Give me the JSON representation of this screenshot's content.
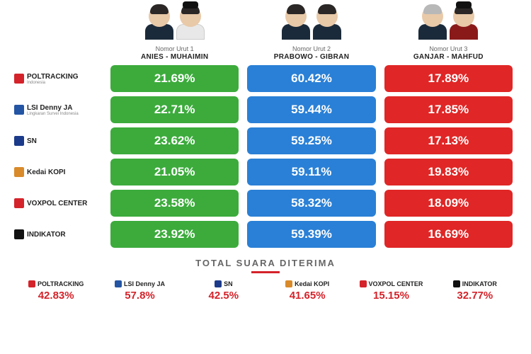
{
  "colors": {
    "col1": "#3cab3c",
    "col2": "#2a80d6",
    "col3": "#e02626",
    "total_pct": "#d4232a"
  },
  "candidates": [
    {
      "nomor": "Nomor Urut 1",
      "names": "ANIES - MUHAIMIN",
      "heads": [
        {
          "hair": "dark",
          "shoulders": "navy",
          "peci": false
        },
        {
          "hair": "dark",
          "shoulders": "white",
          "peci": true
        }
      ]
    },
    {
      "nomor": "Nomor Urut 2",
      "names": "PRABOWO - GIBRAN",
      "heads": [
        {
          "hair": "dark",
          "shoulders": "navy",
          "peci": false
        },
        {
          "hair": "dark",
          "shoulders": "navy",
          "peci": false
        }
      ]
    },
    {
      "nomor": "Nomor Urut 3",
      "names": "GANJAR - MAHFUD",
      "heads": [
        {
          "hair": "grey",
          "shoulders": "navy",
          "peci": false
        },
        {
          "hair": "dark",
          "shoulders": "red",
          "peci": true
        }
      ]
    }
  ],
  "orgs": [
    {
      "name": "POLTRACKING",
      "sub": "Indonesia",
      "logo_color": "#d4232a",
      "vals": [
        "21.69%",
        "60.42%",
        "17.89%"
      ],
      "total": "42.83%"
    },
    {
      "name": "LSI Denny JA",
      "sub": "Lingkaran Survei Indonesia",
      "logo_color": "#2455a4",
      "vals": [
        "22.71%",
        "59.44%",
        "17.85%"
      ],
      "total": "57.8%"
    },
    {
      "name": "SN",
      "sub": "",
      "logo_color": "#1b3a8a",
      "vals": [
        "23.62%",
        "59.25%",
        "17.13%"
      ],
      "total": "42.5%"
    },
    {
      "name": "Kedai KOPI",
      "sub": "",
      "logo_color": "#d98a2a",
      "vals": [
        "21.05%",
        "59.11%",
        "19.83%"
      ],
      "total": "41.65%"
    },
    {
      "name": "VOXPOL CENTER",
      "sub": "",
      "logo_color": "#d4232a",
      "vals": [
        "23.58%",
        "58.32%",
        "18.09%"
      ],
      "total": "15.15%"
    },
    {
      "name": "INDIKATOR",
      "sub": "",
      "logo_color": "#111111",
      "vals": [
        "23.92%",
        "59.39%",
        "16.69%"
      ],
      "total": "32.77%"
    }
  ],
  "totals_title": "TOTAL SUARA DITERIMA"
}
